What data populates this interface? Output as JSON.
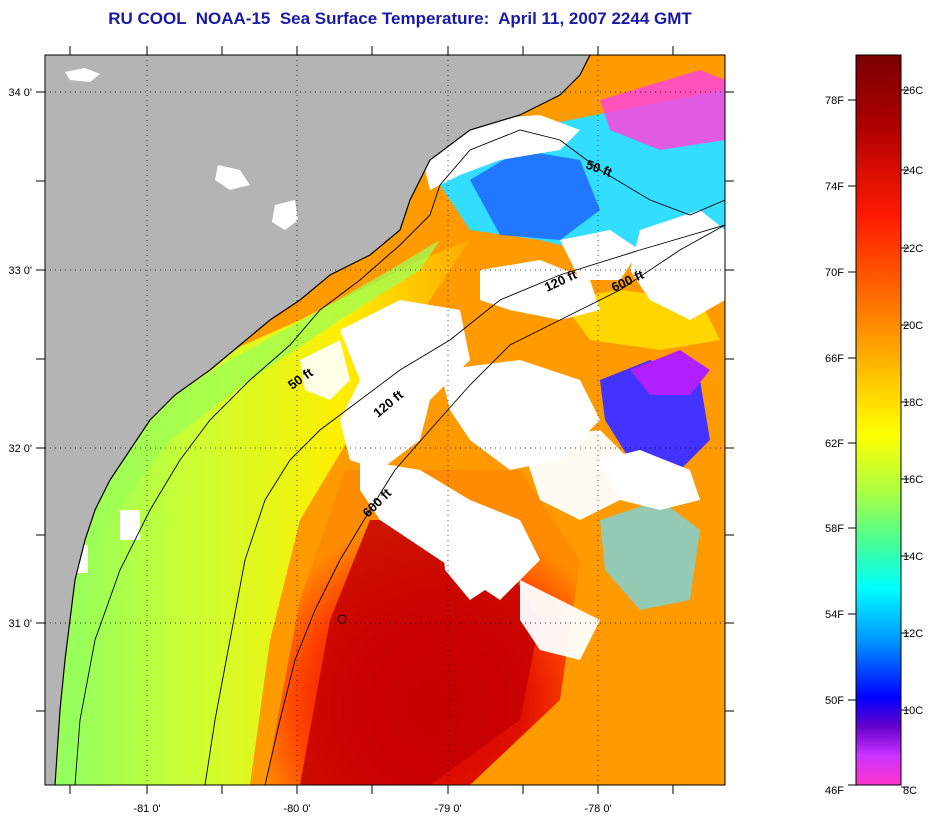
{
  "title": "RU COOL  NOAA-15  Sea Surface Temperature:  April 11, 2007 2244 GMT",
  "map": {
    "lon_ticks": [
      "-81 0'",
      "-80 0'",
      "-79 0'",
      "-78 0'"
    ],
    "lat_ticks": [
      "34 0'",
      "33 0'",
      "32 0'",
      "31 0'"
    ],
    "contours": [
      "50 ft",
      "120 ft",
      "600 ft",
      "50 ft",
      "120 ft",
      "600 ft"
    ],
    "colors": {
      "land": "#b4b4b4",
      "cloud": "#ffffff",
      "coast": "#000000"
    }
  },
  "colorbar": {
    "fahrenheit": [
      "78F",
      "74F",
      "70F",
      "66F",
      "62F",
      "58F",
      "54F",
      "50F",
      "46F"
    ],
    "celsius": [
      "26C",
      "24C",
      "22C",
      "20C",
      "18C",
      "16C",
      "14C",
      "12C",
      "10C",
      "8C"
    ],
    "stops": [
      "#800000",
      "#cc0000",
      "#ff3300",
      "#ff8800",
      "#ffcc00",
      "#ffff00",
      "#ccff33",
      "#66ff99",
      "#00ffff",
      "#0099ff",
      "#0000ff",
      "#6600cc",
      "#cc33ff",
      "#ff33cc"
    ]
  }
}
